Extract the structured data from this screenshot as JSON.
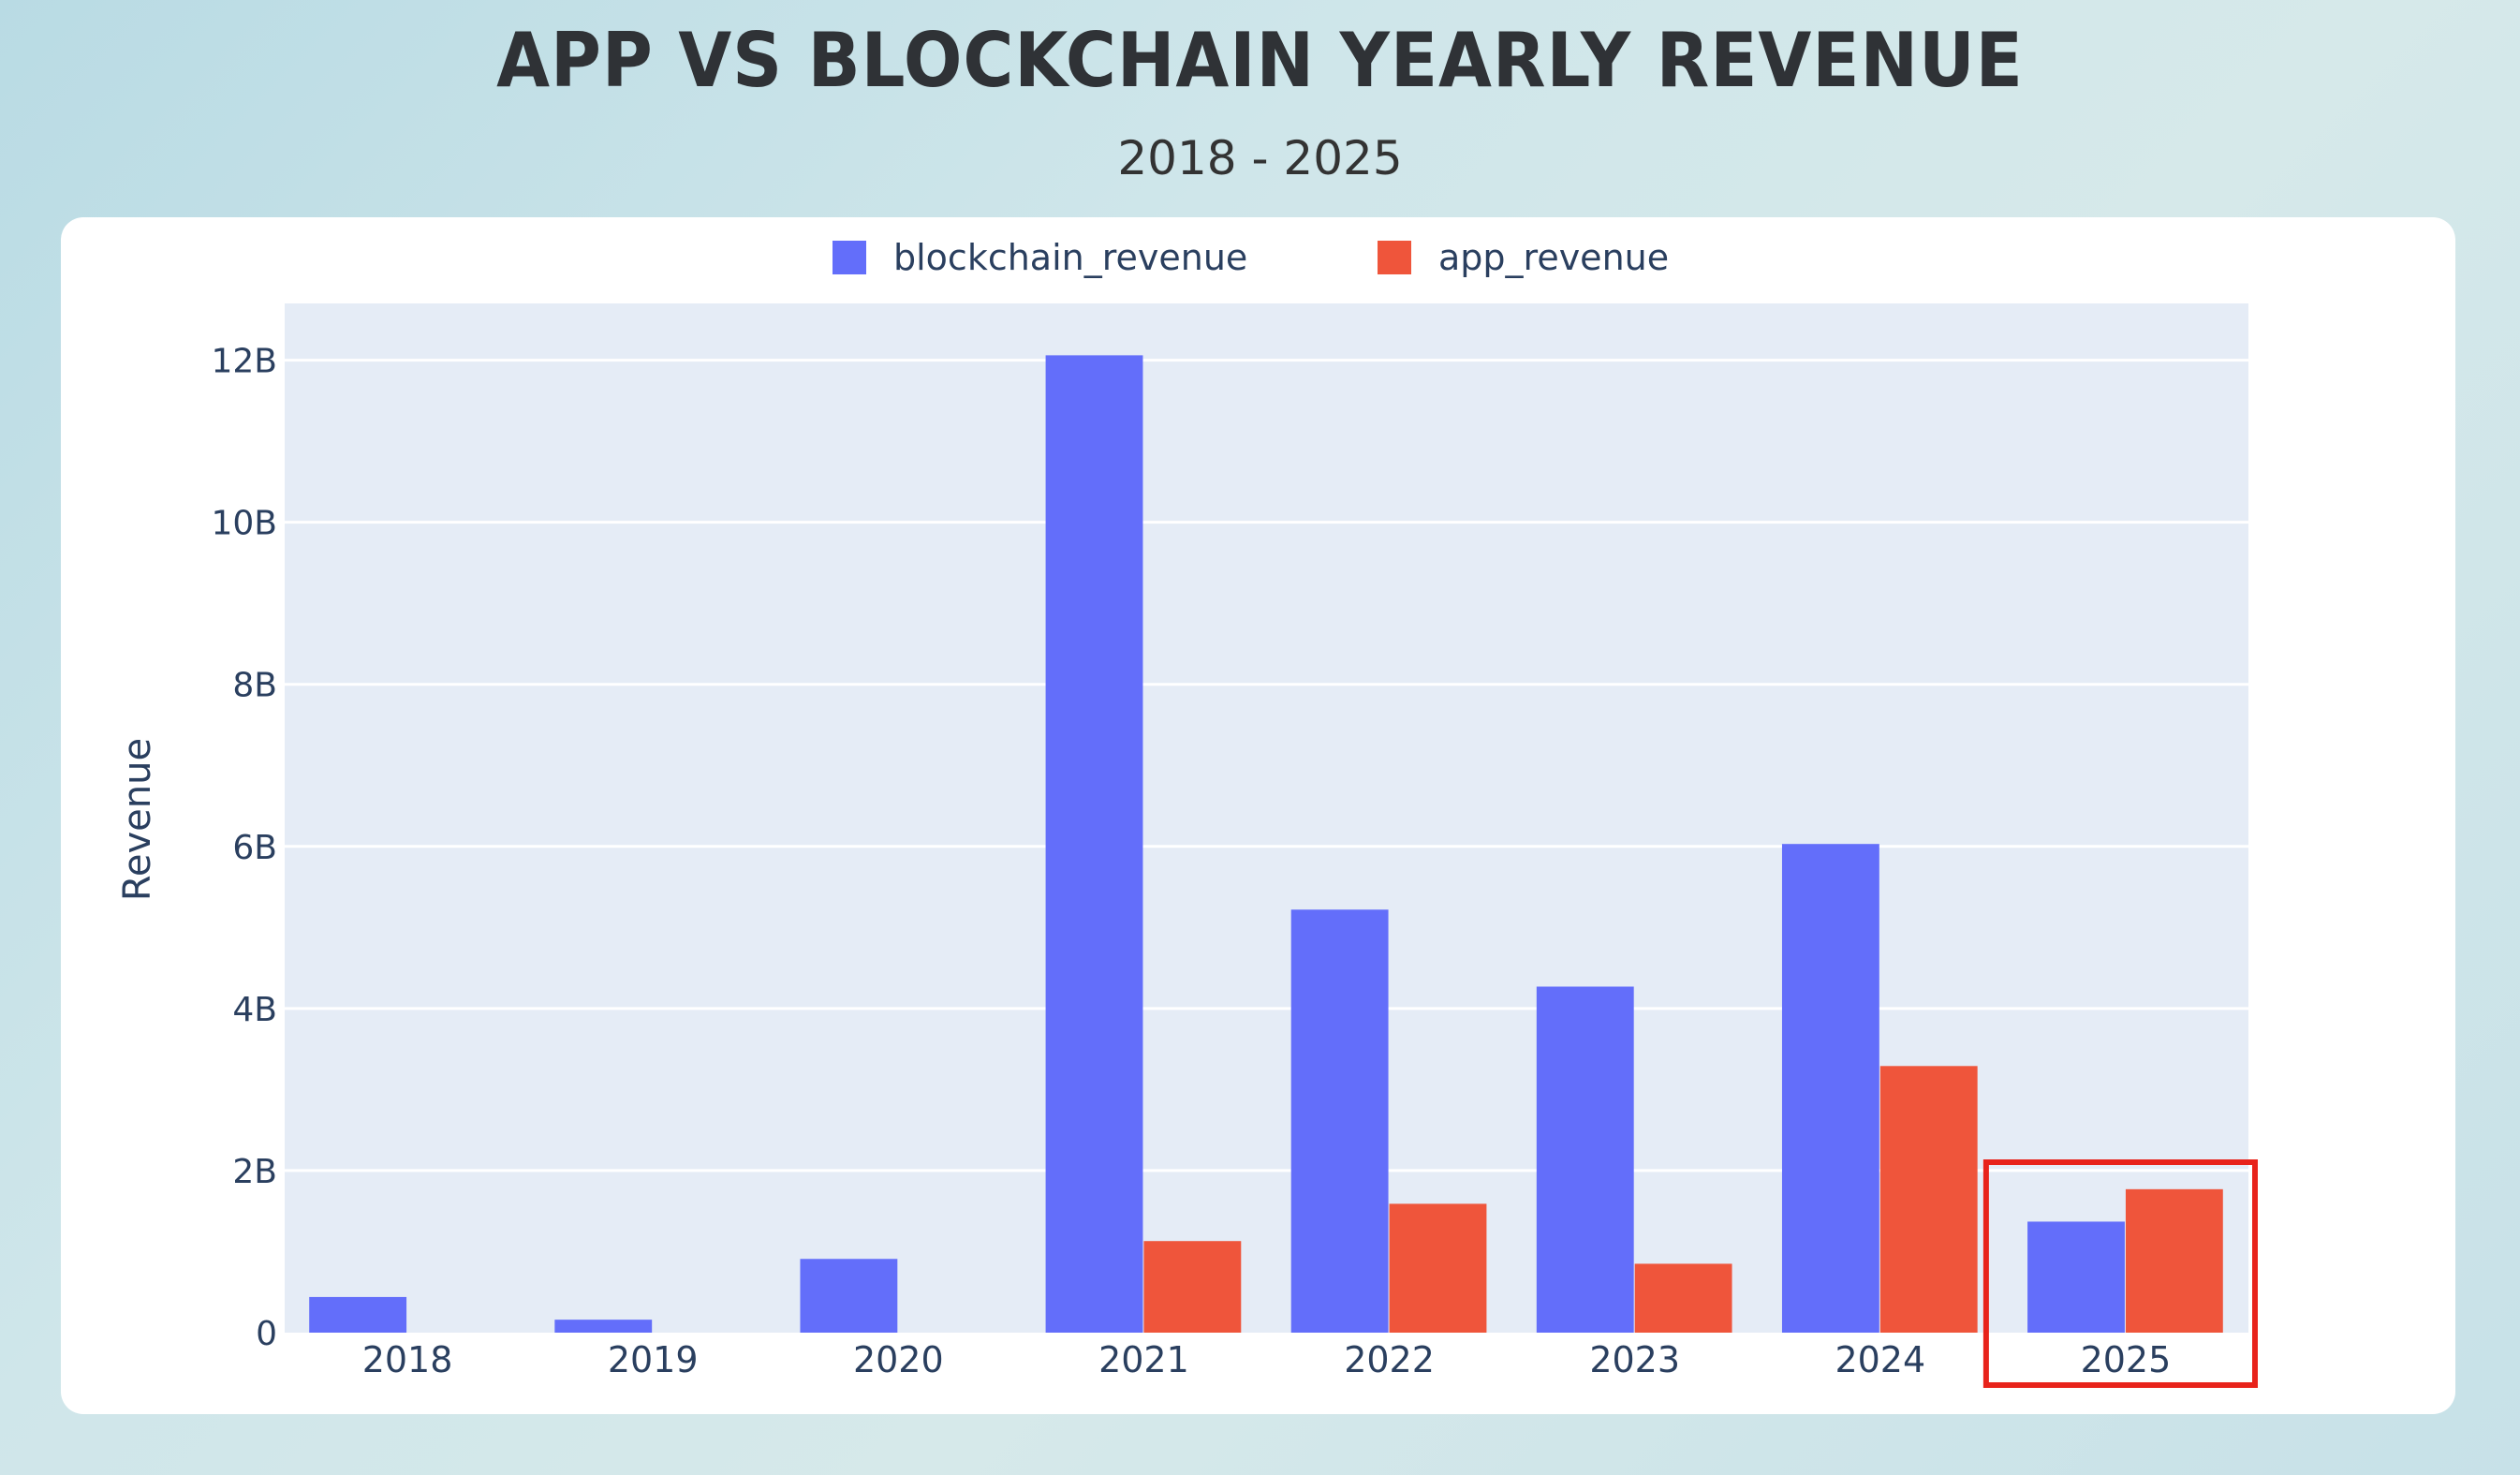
{
  "title": "APP VS BLOCKCHAIN YEARLY REVENUE",
  "subtitle": "2018 - 2025",
  "highlight_category": "2025",
  "colors": {
    "blockchain": "#636efa",
    "app": "#ef553b",
    "highlight": "#e8231b",
    "plot_bg": "#e5ecf6"
  },
  "chart_data": {
    "type": "bar",
    "title": "APP VS BLOCKCHAIN YEARLY REVENUE",
    "subtitle": "2018 - 2025",
    "xlabel": "",
    "ylabel": "Revenue",
    "categories": [
      "2018",
      "2019",
      "2020",
      "2021",
      "2022",
      "2023",
      "2024",
      "2025"
    ],
    "series": [
      {
        "name": "blockchain_revenue",
        "values": [
          0.44,
          0.16,
          0.91,
          12.06,
          5.22,
          4.27,
          6.03,
          1.37
        ]
      },
      {
        "name": "app_revenue",
        "values": [
          0,
          0,
          0,
          1.13,
          1.59,
          0.85,
          3.29,
          1.77
        ]
      }
    ],
    "value_unit": "B",
    "ylim": [
      0,
      12.7
    ],
    "yticks": [
      0,
      2,
      4,
      6,
      8,
      10,
      12
    ],
    "ytick_labels": [
      "0",
      "2B",
      "4B",
      "6B",
      "8B",
      "10B",
      "12B"
    ],
    "grid": true,
    "legend": "top-center"
  }
}
